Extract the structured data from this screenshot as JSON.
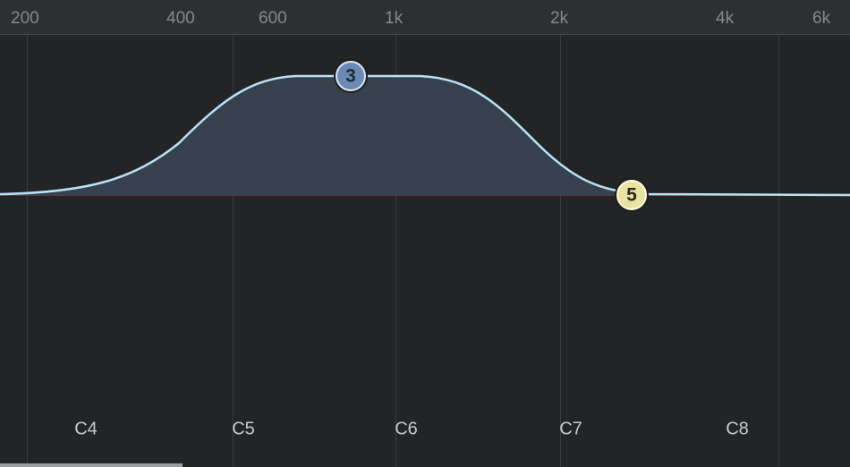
{
  "frequency_labels": [
    "200",
    "400",
    "600",
    "1k",
    "2k",
    "4k",
    "6k"
  ],
  "note_labels": [
    "C4",
    "C5",
    "C6",
    "C7",
    "C8"
  ],
  "band_nodes": [
    "3",
    "5"
  ]
}
